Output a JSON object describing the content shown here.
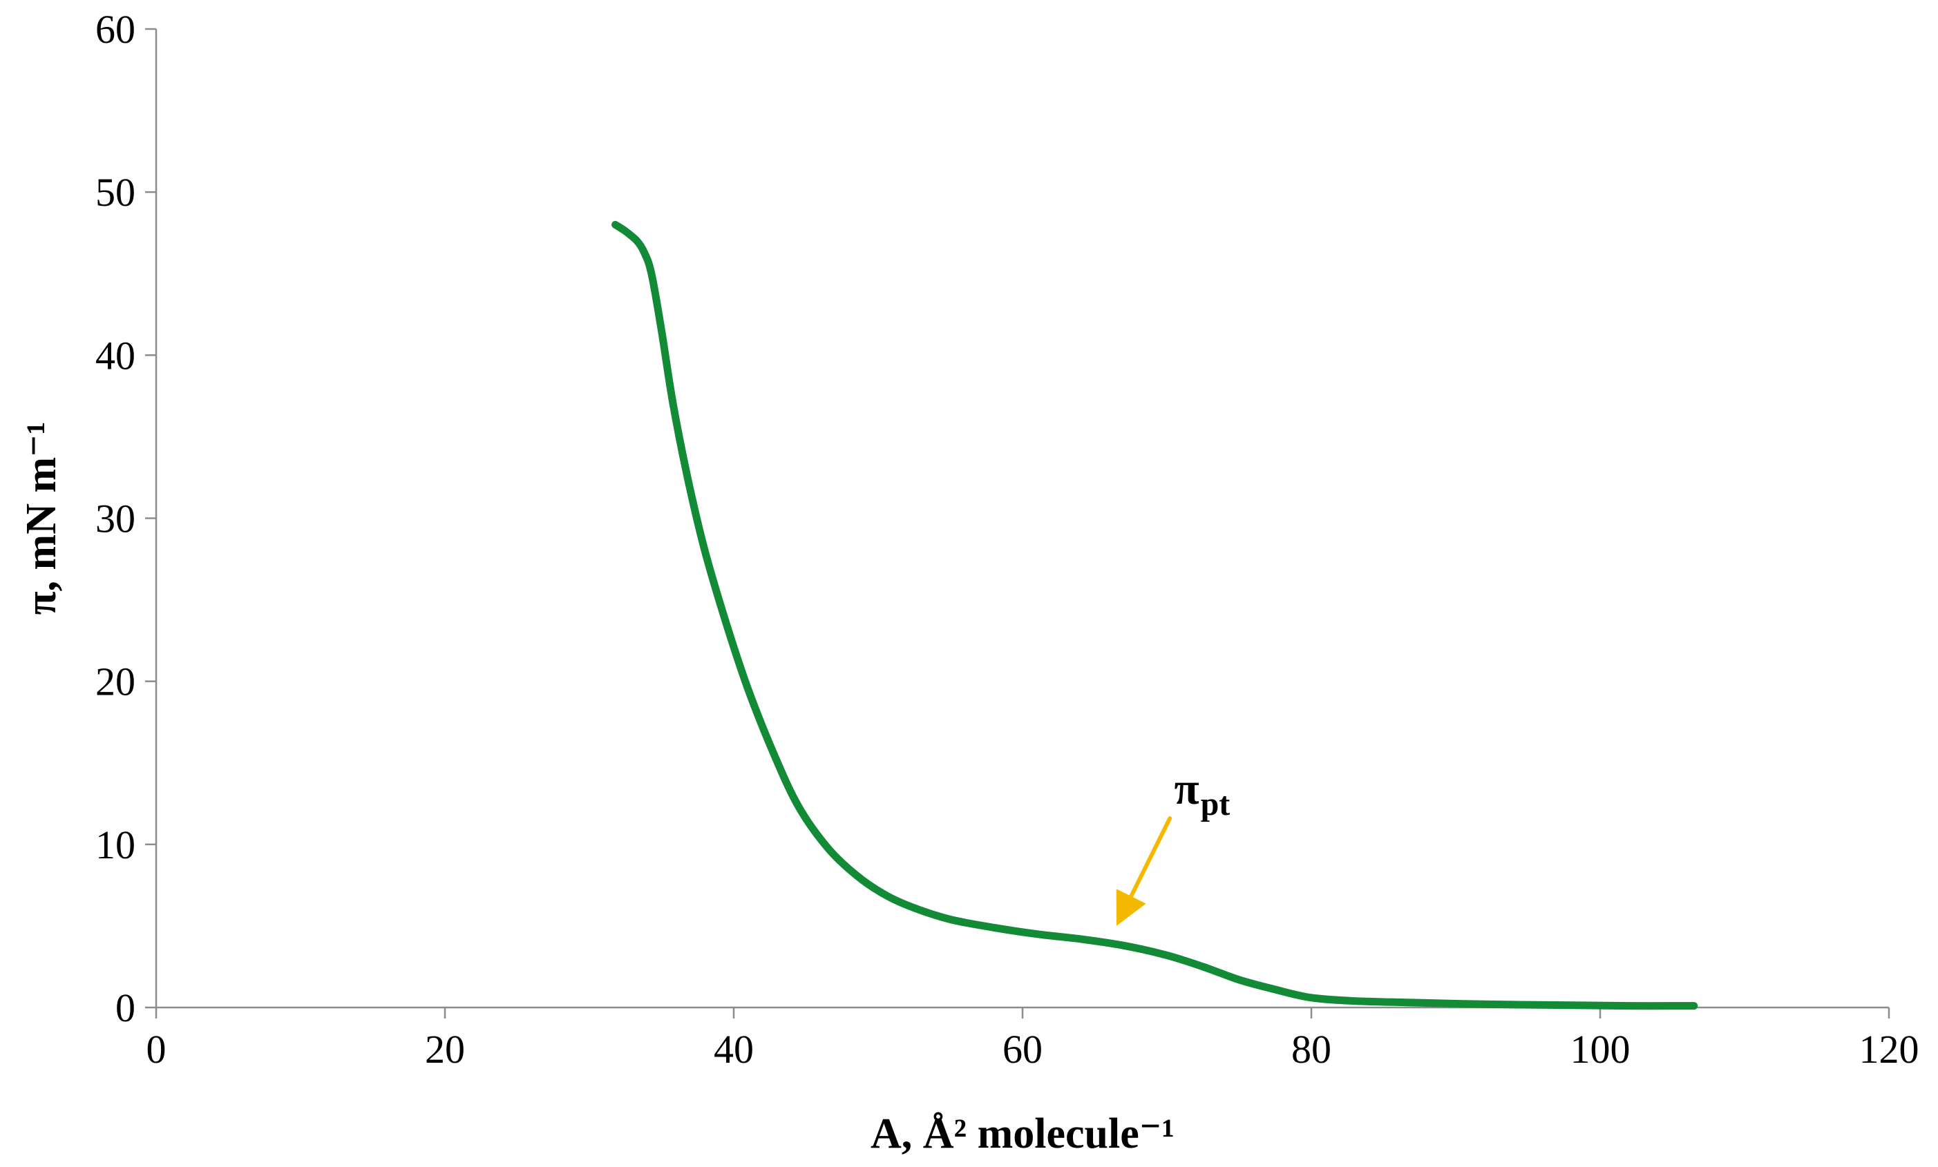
{
  "chart_data": {
    "type": "line",
    "xlabel": "A, Å² molecule⁻¹",
    "ylabel": "π, mN m⁻¹",
    "xlim": [
      0,
      120
    ],
    "ylim": [
      0,
      60
    ],
    "x_ticks": [
      0,
      20,
      40,
      60,
      80,
      100,
      120
    ],
    "y_ticks": [
      0,
      10,
      20,
      30,
      40,
      50,
      60
    ],
    "x_tick_labels": [
      "0",
      "20",
      "40",
      "60",
      "80",
      "100",
      "120"
    ],
    "y_tick_labels": [
      "0",
      "10",
      "20",
      "30",
      "40",
      "50",
      "60"
    ],
    "grid": false,
    "legend": "none",
    "series": [
      {
        "color": "#138a36",
        "points": [
          [
            31.8,
            48.0
          ],
          [
            32.5,
            47.6
          ],
          [
            33.3,
            47.0
          ],
          [
            33.8,
            46.3
          ],
          [
            34.3,
            45.0
          ],
          [
            35.0,
            41.5
          ],
          [
            35.8,
            37.0
          ],
          [
            36.8,
            32.5
          ],
          [
            38.0,
            28.0
          ],
          [
            39.5,
            23.5
          ],
          [
            41.0,
            19.5
          ],
          [
            42.8,
            15.5
          ],
          [
            44.5,
            12.3
          ],
          [
            46.5,
            9.8
          ],
          [
            48.5,
            8.1
          ],
          [
            50.5,
            6.9
          ],
          [
            52.5,
            6.1
          ],
          [
            55.0,
            5.4
          ],
          [
            58.0,
            4.9
          ],
          [
            61.0,
            4.5
          ],
          [
            64.0,
            4.2
          ],
          [
            67.0,
            3.8
          ],
          [
            70.0,
            3.2
          ],
          [
            72.5,
            2.5
          ],
          [
            75.0,
            1.7
          ],
          [
            77.5,
            1.1
          ],
          [
            80.0,
            0.6
          ],
          [
            83.0,
            0.4
          ],
          [
            87.0,
            0.3
          ],
          [
            92.0,
            0.2
          ],
          [
            97.0,
            0.15
          ],
          [
            102.0,
            0.1
          ],
          [
            106.5,
            0.1
          ]
        ]
      }
    ],
    "annotations": [
      {
        "symbol": "π",
        "subscript": "pt",
        "color": "#f5b800",
        "text_at": [
          70.5,
          12.5
        ],
        "arrow_from": [
          70.2,
          11.6
        ],
        "arrow_to": [
          66.5,
          5.0
        ]
      }
    ]
  }
}
